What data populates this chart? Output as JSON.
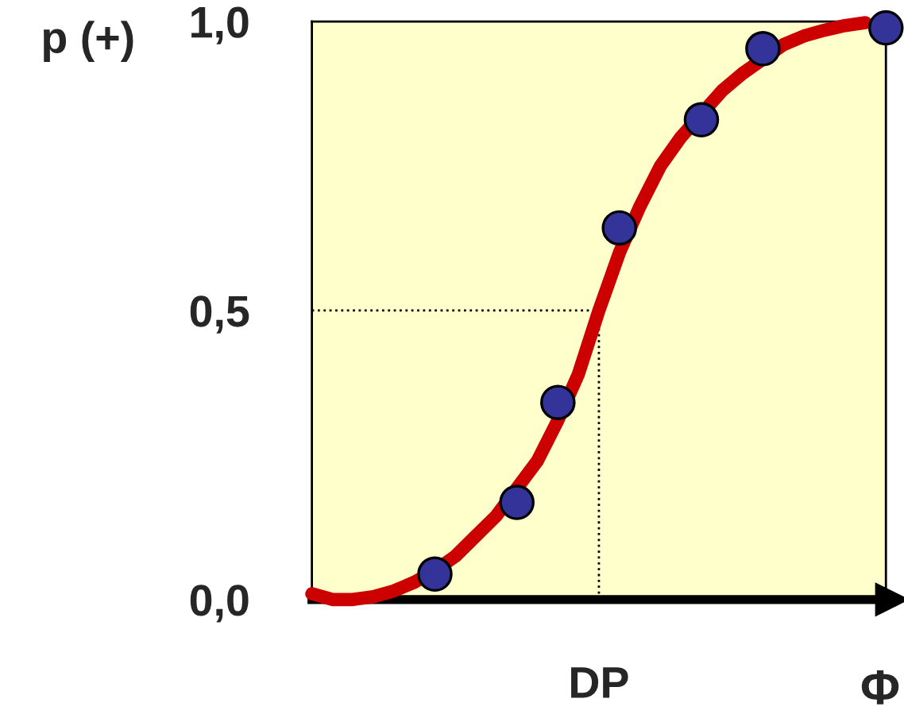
{
  "chart_data": {
    "type": "line",
    "ylabel": "p (+)",
    "xlabel": "Φ",
    "categories": [
      null,
      null,
      null,
      null,
      null,
      null,
      null,
      null,
      null,
      null,
      null,
      null,
      null,
      null,
      "DP",
      null,
      null,
      null,
      null,
      null,
      null,
      null,
      null,
      null,
      null,
      null,
      null,
      null,
      null
    ],
    "ylim": [
      0,
      1
    ],
    "yticks": [
      {
        "value": 0,
        "label": "0,0"
      },
      {
        "value": 0.5,
        "label": "0,5"
      },
      {
        "value": 1,
        "label": "1,0"
      }
    ],
    "grid": false,
    "legend": false,
    "ref_lines": [
      {
        "axis": "y",
        "value": 0.5,
        "color": "#000000",
        "line_style": "dotted"
      },
      {
        "axis": "x",
        "value": "DP",
        "color": "#000000",
        "line_style": "dotted"
      }
    ],
    "series": [
      {
        "color": "#cc0000",
        "line_style": "solid",
        "marker": "none",
        "values": [
          0.01,
          0.0,
          0.0,
          0.005,
          0.015,
          0.03,
          0.05,
          0.075,
          0.11,
          0.145,
          null,
          0.24,
          0.31,
          0.39,
          0.5,
          0.6,
          0.68,
          0.75,
          0.8,
          null,
          0.88,
          0.91,
          null,
          0.96,
          0.975,
          0.985,
          0.993,
          0.998,
          null
        ]
      },
      {
        "type": "scatter",
        "color": "#333399",
        "marker": "circle",
        "values": [
          null,
          null,
          null,
          null,
          null,
          null,
          0.044,
          null,
          null,
          null,
          0.168,
          null,
          0.341,
          null,
          null,
          0.643,
          null,
          null,
          null,
          0.83,
          null,
          null,
          0.953,
          null,
          null,
          null,
          null,
          null,
          0.989
        ]
      }
    ]
  }
}
